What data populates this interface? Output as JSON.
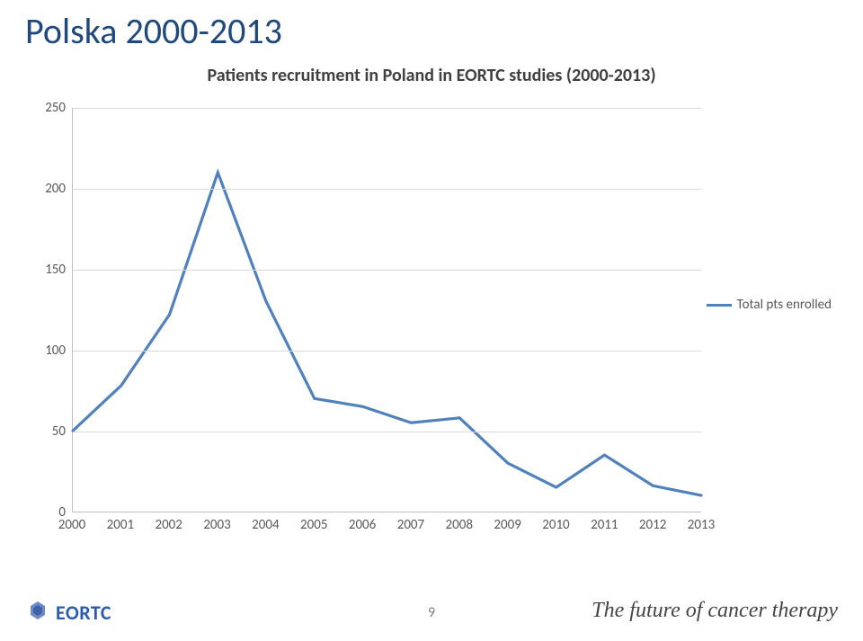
{
  "slide": {
    "title": "Polska 2000-2013",
    "subtitle": "Patients recruitment in Poland in EORTC studies (2000-2013)",
    "page_number": "9",
    "logo_text": "EORTC",
    "tagline": "The future of cancer therapy"
  },
  "chart": {
    "type": "line",
    "background_color": "#ffffff",
    "grid_color": "#d9d9d9",
    "axis_color": "#bfbfbf",
    "tick_font_size": 15,
    "tick_color": "#595959",
    "series_color": "#4f81bd",
    "series_line_width": 3.2,
    "legend_label": "Total pts enrolled",
    "ylim": [
      0,
      250
    ],
    "y_ticks": [
      0,
      50,
      100,
      150,
      200,
      250
    ],
    "x_categories": [
      "2000",
      "2001",
      "2002",
      "2003",
      "2004",
      "2005",
      "2006",
      "2007",
      "2008",
      "2009",
      "2010",
      "2011",
      "2012",
      "2013"
    ],
    "values": [
      50,
      78,
      122,
      210,
      130,
      70,
      65,
      55,
      58,
      30,
      15,
      35,
      16,
      10
    ]
  }
}
